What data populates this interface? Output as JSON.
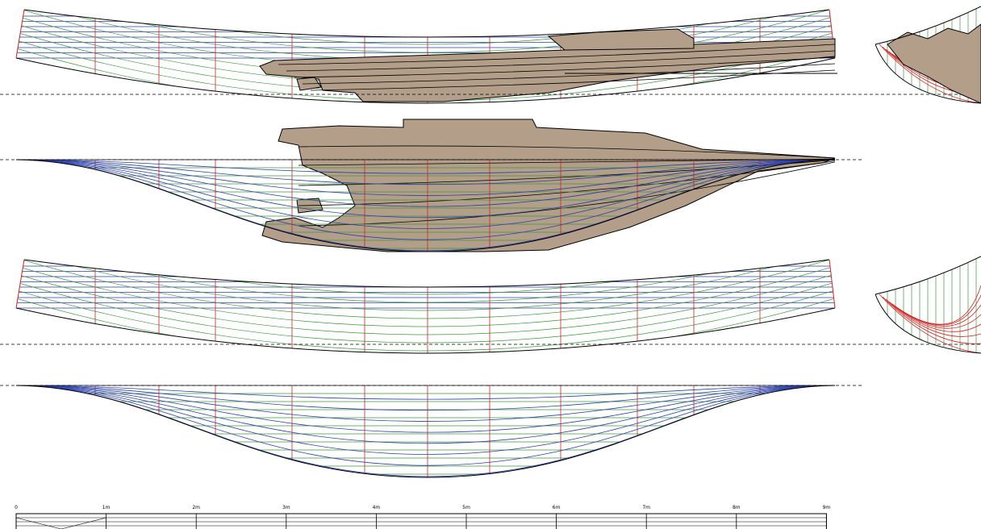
{
  "scale": {
    "labels": [
      "0",
      "1m",
      "2m",
      "3m",
      "4m",
      "5m",
      "6m",
      "7m",
      "8m",
      "9m"
    ]
  }
}
